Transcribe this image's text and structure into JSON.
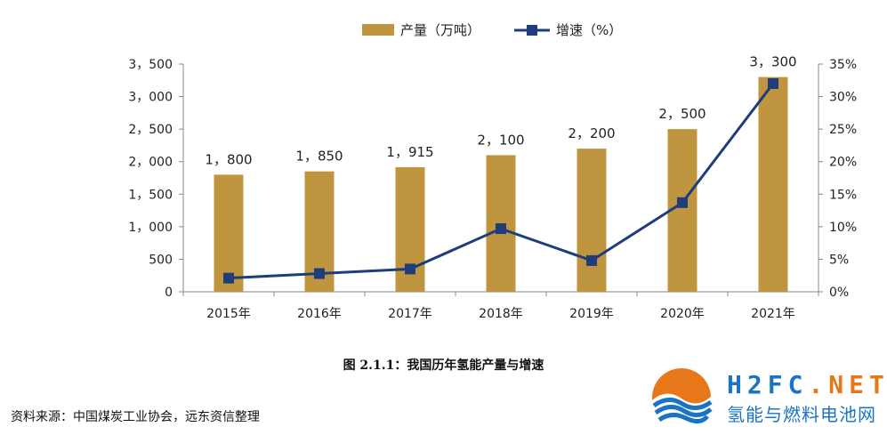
{
  "chart_data": {
    "type": "bar+line",
    "categories": [
      "2015年",
      "2016年",
      "2017年",
      "2018年",
      "2019年",
      "2020年",
      "2021年"
    ],
    "series": [
      {
        "name": "产量（万吨）",
        "type": "bar",
        "axis": "left",
        "values": [
          1800,
          1850,
          1915,
          2100,
          2200,
          2500,
          3300
        ],
        "value_labels": [
          "1，800",
          "1，850",
          "1，915",
          "2，100",
          "2，200",
          "2，500",
          "3，300"
        ],
        "color": "#c0953f"
      },
      {
        "name": "增速（%）",
        "type": "line",
        "axis": "right",
        "values": [
          2.1,
          2.8,
          3.5,
          9.7,
          4.8,
          13.7,
          32.0
        ],
        "color": "#1f3d7a"
      }
    ],
    "y_left": {
      "range": [
        0,
        3500
      ],
      "ticks": [
        0,
        500,
        1000,
        1500,
        2000,
        2500,
        3000,
        3500
      ],
      "tick_labels": [
        "0",
        "500",
        "1，000",
        "1，500",
        "2，000",
        "2，500",
        "3，000",
        "3，500"
      ]
    },
    "y_right": {
      "range": [
        0,
        35
      ],
      "ticks": [
        0,
        5,
        10,
        15,
        20,
        25,
        30,
        35
      ],
      "tick_labels": [
        "0%",
        "5%",
        "10%",
        "15%",
        "20%",
        "25%",
        "30%",
        "35%"
      ]
    },
    "grid": false,
    "legend_position": "top-center",
    "title": "图 2.1.1：我国历年氢能产量与增速"
  },
  "caption": "图 2.1.1：我国历年氢能产量与增速",
  "source": "资料来源：中国煤炭工业协会，远东资信整理",
  "logo": {
    "line1_a": "H2FC",
    "line1_b": ".NET",
    "line2": "氢能与燃料电池网"
  }
}
